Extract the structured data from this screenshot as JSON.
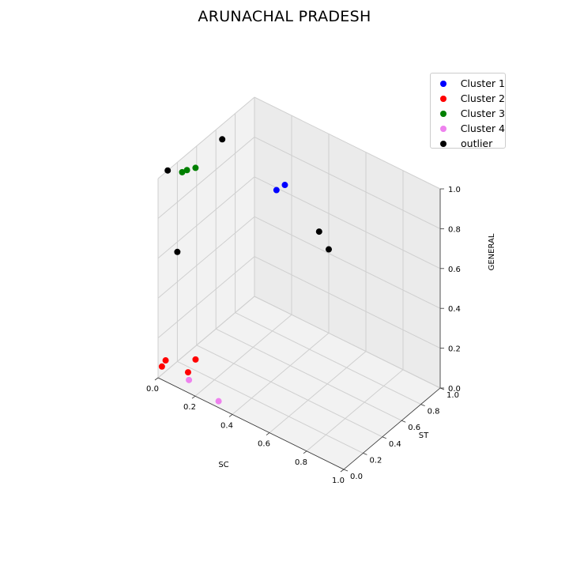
{
  "chart_data": {
    "type": "scatter",
    "title": "ARUNACHAL PRADESH",
    "xlabel": "SC",
    "ylabel": "ST",
    "zlabel": "GENERAL",
    "xlim": [
      0,
      1
    ],
    "ylim": [
      0,
      1
    ],
    "zlim": [
      0,
      1
    ],
    "xticks": [
      "0.0",
      "0.2",
      "0.4",
      "0.6",
      "0.8",
      "1.0"
    ],
    "yticks": [
      "0.0",
      "0.2",
      "0.4",
      "0.6",
      "0.8",
      "1.0"
    ],
    "zticks": [
      "0.0",
      "0.2",
      "0.4",
      "0.6",
      "0.8",
      "1.0"
    ],
    "grid": true,
    "legend_position": "top-right",
    "series": [
      {
        "name": "Cluster 1",
        "color": "#0000ff",
        "points": [
          [
            0.2,
            0.93,
            0.68
          ],
          [
            0.16,
            0.92,
            0.64
          ]
        ]
      },
      {
        "name": "Cluster 2",
        "color": "#ff0000",
        "points": [
          [
            0.15,
            0.1,
            0.12
          ],
          [
            0.12,
            0.08,
            0.05
          ],
          [
            0.02,
            0.04,
            0.08
          ],
          [
            0.0,
            0.04,
            0.04
          ]
        ]
      },
      {
        "name": "Cluster 3",
        "color": "#008000",
        "points": [
          [
            0.0,
            0.3,
            0.92
          ],
          [
            0.02,
            0.35,
            0.92
          ],
          [
            0.0,
            0.25,
            0.93
          ]
        ]
      },
      {
        "name": "Cluster 4",
        "color": "#ee82ee",
        "points": [
          [
            0.13,
            0.07,
            0.02
          ],
          [
            0.3,
            0.05,
            0.0
          ]
        ]
      },
      {
        "name": "outlier",
        "color": "#000000",
        "points": [
          [
            0.06,
            0.55,
            1.0
          ],
          [
            0.0,
            0.1,
            1.0
          ],
          [
            0.0,
            0.2,
            0.55
          ],
          [
            0.4,
            0.9,
            0.55
          ],
          [
            0.4,
            1.0,
            0.42
          ]
        ]
      }
    ]
  }
}
